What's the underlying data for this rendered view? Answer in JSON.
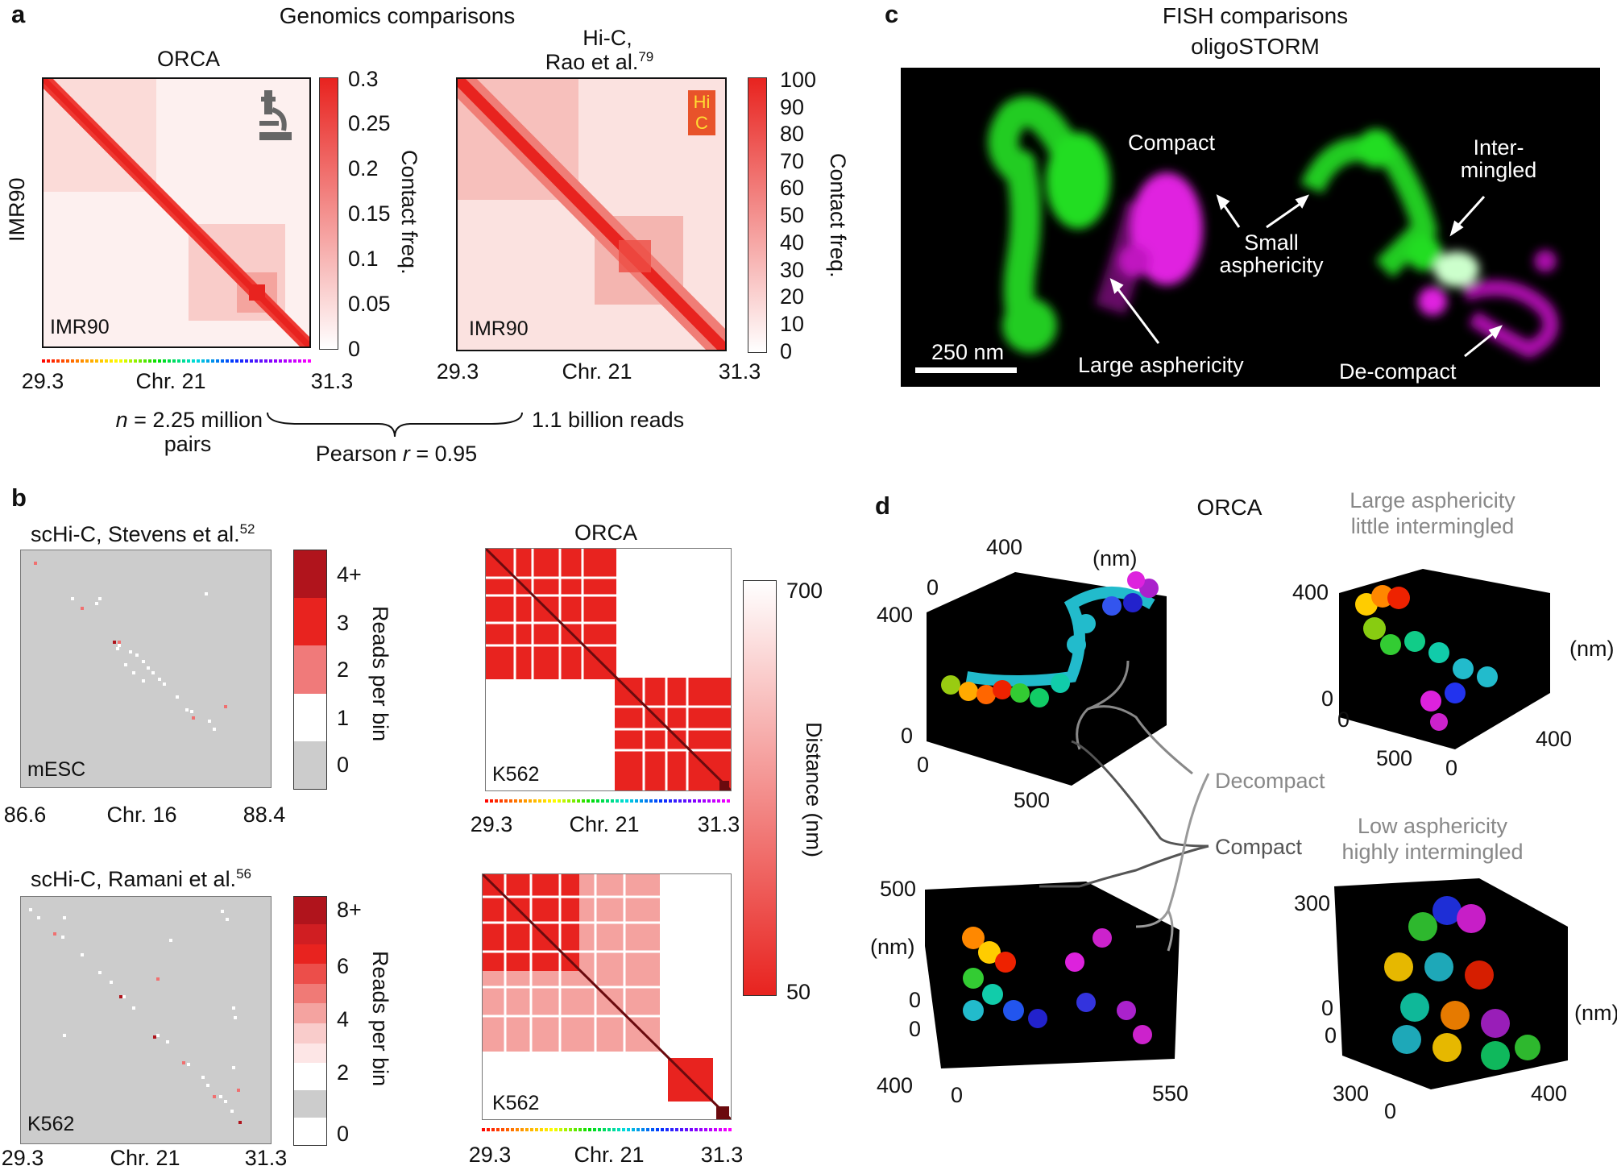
{
  "panel_a": {
    "label": "a",
    "title": "Genomics comparisons",
    "left_title": "ORCA",
    "right_title_line1": "Hi-C,",
    "right_title_line2": "Rao et al.",
    "right_title_sup": "79",
    "row_label": "IMR90",
    "left_inset": "IMR90",
    "right_inset": "IMR90",
    "hic_logo_line1": "Hi",
    "hic_logo_line2": "C",
    "left_colorbar_ticks": [
      "0.3",
      "0.25",
      "0.2",
      "0.15",
      "0.1",
      "0.05",
      "0"
    ],
    "left_colorbar_label": "Contact freq.",
    "right_colorbar_ticks": [
      "100",
      "90",
      "80",
      "70",
      "60",
      "50",
      "40",
      "30",
      "20",
      "10",
      "0"
    ],
    "right_colorbar_label": "Contact freq.",
    "left_x_start": "29.3",
    "left_x_mid": "Chr. 21",
    "left_x_end": "31.3",
    "right_x_start": "29.3",
    "right_x_mid": "Chr. 21",
    "right_x_end": "31.3",
    "left_n": "n",
    "left_count": " = 2.25 million",
    "left_count2": "pairs",
    "right_count": "1.1 billion reads",
    "pearson_pre": "Pearson ",
    "pearson_r": "r",
    "pearson_post": " = 0.95"
  },
  "panel_b": {
    "label": "b",
    "top_title": "scHi-C, Stevens et al.",
    "top_title_sup": "52",
    "top_inset": "mESC",
    "top_ticks": [
      "4+",
      "3",
      "2",
      "1",
      "0"
    ],
    "top_cb_label": "Reads per bin",
    "top_x_start": "86.6",
    "top_x_mid": "Chr. 16",
    "top_x_end": "88.4",
    "bottom_title": "scHi-C, Ramani et al.",
    "bottom_title_sup": "56",
    "bottom_inset": "K562",
    "bottom_ticks": [
      "8+",
      "6",
      "4",
      "2",
      "0"
    ],
    "bottom_cb_label": "Reads per bin",
    "bottom_x_start": "29.3",
    "bottom_x_mid": "Chr. 21",
    "bottom_x_end": "31.3",
    "orca_title": "ORCA",
    "orca_top_inset": "K562",
    "orca_bottom_inset": "K562",
    "orca_top_x_start": "29.3",
    "orca_top_x_mid": "Chr. 21",
    "orca_top_x_end": "31.3",
    "orca_bottom_x_start": "29.3",
    "orca_bottom_x_mid": "Chr. 21",
    "orca_bottom_x_end": "31.3",
    "distance_ticks": [
      "700",
      "50"
    ],
    "distance_label": "Distance (nm)"
  },
  "panel_c": {
    "label": "c",
    "title_line1": "FISH comparisons",
    "title_line2": "oligoSTORM",
    "compact": "Compact",
    "intermingled_line1": "Inter-",
    "intermingled_line2": "mingled",
    "small_line1": "Small",
    "small_line2": "asphericity",
    "large": "Large asphericity",
    "decompact": "De-compact",
    "scalebar": "250 nm"
  },
  "panel_d": {
    "label": "d",
    "title": "ORCA",
    "large_title_line1": "Large asphericity",
    "large_title_line2": "little intermingled",
    "low_title_line1": "Low asphericity",
    "low_title_line2": "highly intermingled",
    "decompact": "Decompact",
    "compact": "Compact",
    "tl_axis": [
      "400",
      "(nm)",
      "0",
      "400",
      "0",
      "0",
      "500"
    ],
    "tr_axis": [
      "400",
      "(nm)",
      "0",
      "0",
      "500",
      "0",
      "400"
    ],
    "bl_axis": [
      "500",
      "(nm)",
      "0",
      "0",
      "400",
      "0",
      "550"
    ],
    "br_axis": [
      "300",
      "0",
      "0",
      "(nm)",
      "300",
      "0",
      "400"
    ]
  },
  "colors": {
    "heat_red": "#e8231f",
    "dark_red": "#b0141c",
    "storm_green": "#22dd22",
    "storm_magenta": "#e020e0",
    "gray_text": "#888888"
  }
}
